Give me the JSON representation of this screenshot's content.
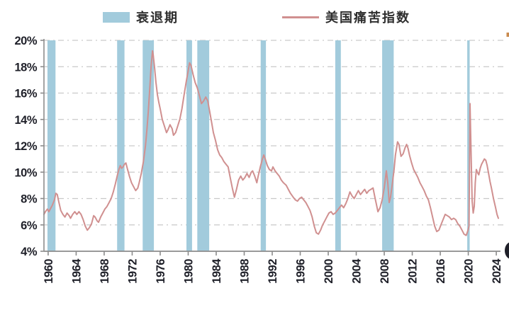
{
  "legend": {
    "recession_label": "衰退期",
    "misery_label": "美国痛苦指数"
  },
  "colors": {
    "recession_band": "#a2cbdc",
    "misery_line": "#d09090",
    "gridline": "#c9c9c9",
    "axis": "#8c8c8c",
    "tick_label": "#1f2029",
    "edge_artifact_dark": "#1f2029",
    "edge_artifact_orange": "#c98a4e"
  },
  "chart_data": {
    "type": "line",
    "title": "",
    "xlabel": "",
    "ylabel": "",
    "legend_position": "top",
    "grid": "horizontal dash-dot",
    "ylim": [
      4,
      20
    ],
    "xlim": [
      1959.4,
      2024.6
    ],
    "y_ticks": [
      "20%",
      "18%",
      "16%",
      "14%",
      "12%",
      "10%",
      "8%",
      "6%",
      "4%"
    ],
    "x_ticks": [
      "1960",
      "1964",
      "1968",
      "1972",
      "1976",
      "1980",
      "1984",
      "1988",
      "1992",
      "1996",
      "2000",
      "2004",
      "2008",
      "2012",
      "2016",
      "2020",
      "2024"
    ],
    "recession_bands": [
      [
        1959.9,
        1961.05
      ],
      [
        1969.85,
        1970.9
      ],
      [
        1973.5,
        1975.1
      ],
      [
        1979.75,
        1980.55
      ],
      [
        1981.3,
        1983.0
      ],
      [
        1990.35,
        1991.1
      ],
      [
        2001.0,
        2001.8
      ],
      [
        2007.7,
        2009.35
      ],
      [
        2019.85,
        2020.2
      ]
    ],
    "series": [
      {
        "name": "美国痛苦指数",
        "points": [
          [
            1959.4,
            6.8
          ],
          [
            1959.6,
            7.0
          ],
          [
            1959.9,
            7.2
          ],
          [
            1960.1,
            7.0
          ],
          [
            1960.3,
            7.2
          ],
          [
            1960.6,
            7.5
          ],
          [
            1960.9,
            7.9
          ],
          [
            1961.1,
            8.4
          ],
          [
            1961.3,
            8.3
          ],
          [
            1961.5,
            7.8
          ],
          [
            1961.8,
            7.1
          ],
          [
            1962.1,
            6.8
          ],
          [
            1962.4,
            6.6
          ],
          [
            1962.7,
            6.9
          ],
          [
            1963.0,
            6.7
          ],
          [
            1963.2,
            6.5
          ],
          [
            1963.5,
            6.8
          ],
          [
            1963.8,
            7.0
          ],
          [
            1964.1,
            6.8
          ],
          [
            1964.4,
            7.0
          ],
          [
            1964.7,
            6.8
          ],
          [
            1965.0,
            6.4
          ],
          [
            1965.3,
            5.9
          ],
          [
            1965.6,
            5.6
          ],
          [
            1965.9,
            5.8
          ],
          [
            1966.2,
            6.1
          ],
          [
            1966.5,
            6.7
          ],
          [
            1966.7,
            6.6
          ],
          [
            1967.0,
            6.3
          ],
          [
            1967.2,
            6.2
          ],
          [
            1967.5,
            6.6
          ],
          [
            1967.8,
            6.9
          ],
          [
            1968.1,
            7.2
          ],
          [
            1968.4,
            7.4
          ],
          [
            1968.7,
            7.7
          ],
          [
            1969.0,
            8.0
          ],
          [
            1969.3,
            8.5
          ],
          [
            1969.6,
            9.1
          ],
          [
            1969.9,
            9.8
          ],
          [
            1970.1,
            10.2
          ],
          [
            1970.3,
            10.5
          ],
          [
            1970.5,
            10.3
          ],
          [
            1970.7,
            10.4
          ],
          [
            1970.9,
            10.6
          ],
          [
            1971.1,
            10.7
          ],
          [
            1971.3,
            10.3
          ],
          [
            1971.6,
            9.7
          ],
          [
            1971.9,
            9.2
          ],
          [
            1972.2,
            8.9
          ],
          [
            1972.5,
            8.6
          ],
          [
            1972.8,
            8.8
          ],
          [
            1973.0,
            9.2
          ],
          [
            1973.3,
            9.9
          ],
          [
            1973.6,
            10.8
          ],
          [
            1973.9,
            12.0
          ],
          [
            1974.1,
            13.2
          ],
          [
            1974.3,
            14.6
          ],
          [
            1974.5,
            16.2
          ],
          [
            1974.7,
            18.0
          ],
          [
            1974.9,
            19.2
          ],
          [
            1975.0,
            18.9
          ],
          [
            1975.2,
            17.9
          ],
          [
            1975.4,
            16.8
          ],
          [
            1975.6,
            15.9
          ],
          [
            1975.8,
            15.3
          ],
          [
            1976.0,
            14.8
          ],
          [
            1976.3,
            14.0
          ],
          [
            1976.6,
            13.5
          ],
          [
            1976.9,
            13.0
          ],
          [
            1977.1,
            13.2
          ],
          [
            1977.4,
            13.6
          ],
          [
            1977.7,
            13.3
          ],
          [
            1977.9,
            12.8
          ],
          [
            1978.2,
            13.0
          ],
          [
            1978.5,
            13.5
          ],
          [
            1978.8,
            14.0
          ],
          [
            1979.1,
            14.8
          ],
          [
            1979.4,
            15.8
          ],
          [
            1979.7,
            16.8
          ],
          [
            1980.0,
            17.7
          ],
          [
            1980.2,
            18.3
          ],
          [
            1980.4,
            18.1
          ],
          [
            1980.7,
            17.4
          ],
          [
            1981.0,
            16.8
          ],
          [
            1981.3,
            16.4
          ],
          [
            1981.6,
            15.8
          ],
          [
            1981.9,
            15.2
          ],
          [
            1982.2,
            15.4
          ],
          [
            1982.5,
            15.7
          ],
          [
            1982.8,
            15.4
          ],
          [
            1983.0,
            14.8
          ],
          [
            1983.3,
            13.9
          ],
          [
            1983.6,
            13.0
          ],
          [
            1983.9,
            12.4
          ],
          [
            1984.2,
            11.7
          ],
          [
            1984.5,
            11.3
          ],
          [
            1984.8,
            11.1
          ],
          [
            1985.1,
            10.8
          ],
          [
            1985.4,
            10.6
          ],
          [
            1985.7,
            10.4
          ],
          [
            1986.0,
            9.6
          ],
          [
            1986.3,
            8.8
          ],
          [
            1986.6,
            8.1
          ],
          [
            1986.9,
            8.7
          ],
          [
            1987.2,
            9.4
          ],
          [
            1987.5,
            9.7
          ],
          [
            1987.8,
            9.4
          ],
          [
            1988.1,
            9.6
          ],
          [
            1988.4,
            9.9
          ],
          [
            1988.7,
            9.6
          ],
          [
            1989.0,
            10.0
          ],
          [
            1989.2,
            10.1
          ],
          [
            1989.5,
            9.7
          ],
          [
            1989.8,
            9.2
          ],
          [
            1990.0,
            9.7
          ],
          [
            1990.3,
            10.4
          ],
          [
            1990.6,
            11.0
          ],
          [
            1990.8,
            11.3
          ],
          [
            1991.0,
            11.0
          ],
          [
            1991.3,
            10.5
          ],
          [
            1991.6,
            10.2
          ],
          [
            1991.9,
            10.1
          ],
          [
            1992.1,
            10.4
          ],
          [
            1992.4,
            10.1
          ],
          [
            1992.7,
            9.9
          ],
          [
            1993.0,
            9.7
          ],
          [
            1993.3,
            9.4
          ],
          [
            1993.6,
            9.2
          ],
          [
            1994.0,
            9.0
          ],
          [
            1994.3,
            8.7
          ],
          [
            1994.6,
            8.4
          ],
          [
            1995.0,
            8.1
          ],
          [
            1995.3,
            7.9
          ],
          [
            1995.6,
            7.8
          ],
          [
            1995.9,
            8.0
          ],
          [
            1996.2,
            8.1
          ],
          [
            1996.5,
            7.9
          ],
          [
            1996.8,
            7.7
          ],
          [
            1997.1,
            7.4
          ],
          [
            1997.4,
            7.1
          ],
          [
            1997.7,
            6.6
          ],
          [
            1998.0,
            5.9
          ],
          [
            1998.3,
            5.4
          ],
          [
            1998.6,
            5.3
          ],
          [
            1998.9,
            5.6
          ],
          [
            1999.2,
            6.0
          ],
          [
            1999.5,
            6.3
          ],
          [
            1999.8,
            6.6
          ],
          [
            2000.1,
            6.9
          ],
          [
            2000.4,
            7.0
          ],
          [
            2000.7,
            6.8
          ],
          [
            2001.0,
            6.9
          ],
          [
            2001.3,
            7.1
          ],
          [
            2001.6,
            7.3
          ],
          [
            2001.9,
            7.5
          ],
          [
            2002.2,
            7.3
          ],
          [
            2002.5,
            7.6
          ],
          [
            2002.8,
            8.0
          ],
          [
            2003.1,
            8.5
          ],
          [
            2003.4,
            8.2
          ],
          [
            2003.7,
            8.0
          ],
          [
            2004.0,
            8.3
          ],
          [
            2004.3,
            8.6
          ],
          [
            2004.6,
            8.3
          ],
          [
            2004.9,
            8.5
          ],
          [
            2005.2,
            8.7
          ],
          [
            2005.5,
            8.4
          ],
          [
            2005.8,
            8.6
          ],
          [
            2006.1,
            8.7
          ],
          [
            2006.4,
            8.8
          ],
          [
            2006.7,
            8.0
          ],
          [
            2006.9,
            7.5
          ],
          [
            2007.1,
            7.0
          ],
          [
            2007.4,
            7.3
          ],
          [
            2007.7,
            7.9
          ],
          [
            2008.0,
            8.8
          ],
          [
            2008.3,
            10.1
          ],
          [
            2008.5,
            9.2
          ],
          [
            2008.7,
            7.7
          ],
          [
            2008.9,
            8.1
          ],
          [
            2009.1,
            8.9
          ],
          [
            2009.4,
            10.2
          ],
          [
            2009.6,
            11.3
          ],
          [
            2009.9,
            12.3
          ],
          [
            2010.1,
            12.1
          ],
          [
            2010.4,
            11.2
          ],
          [
            2010.7,
            11.4
          ],
          [
            2011.0,
            11.9
          ],
          [
            2011.2,
            12.1
          ],
          [
            2011.4,
            11.8
          ],
          [
            2011.6,
            11.3
          ],
          [
            2011.9,
            10.7
          ],
          [
            2012.2,
            10.2
          ],
          [
            2012.5,
            9.9
          ],
          [
            2012.8,
            9.6
          ],
          [
            2013.1,
            9.2
          ],
          [
            2013.4,
            8.9
          ],
          [
            2013.7,
            8.6
          ],
          [
            2014.0,
            8.2
          ],
          [
            2014.3,
            7.9
          ],
          [
            2014.6,
            7.3
          ],
          [
            2014.9,
            6.6
          ],
          [
            2015.2,
            5.9
          ],
          [
            2015.5,
            5.5
          ],
          [
            2015.8,
            5.6
          ],
          [
            2016.1,
            6.0
          ],
          [
            2016.4,
            6.4
          ],
          [
            2016.7,
            6.8
          ],
          [
            2017.0,
            6.7
          ],
          [
            2017.3,
            6.6
          ],
          [
            2017.6,
            6.4
          ],
          [
            2017.9,
            6.5
          ],
          [
            2018.2,
            6.4
          ],
          [
            2018.5,
            6.1
          ],
          [
            2018.8,
            5.9
          ],
          [
            2019.1,
            5.6
          ],
          [
            2019.4,
            5.3
          ],
          [
            2019.7,
            5.2
          ],
          [
            2019.9,
            5.5
          ],
          [
            2020.1,
            5.9
          ],
          [
            2020.25,
            15.2
          ],
          [
            2020.4,
            11.5
          ],
          [
            2020.55,
            7.8
          ],
          [
            2020.7,
            6.9
          ],
          [
            2020.85,
            7.4
          ],
          [
            2021.0,
            9.2
          ],
          [
            2021.15,
            10.2
          ],
          [
            2021.3,
            10.0
          ],
          [
            2021.5,
            9.8
          ],
          [
            2021.7,
            10.3
          ],
          [
            2021.9,
            10.6
          ],
          [
            2022.1,
            10.8
          ],
          [
            2022.3,
            11.0
          ],
          [
            2022.5,
            10.9
          ],
          [
            2022.7,
            10.5
          ],
          [
            2022.9,
            9.9
          ],
          [
            2023.1,
            9.3
          ],
          [
            2023.3,
            8.8
          ],
          [
            2023.6,
            8.0
          ],
          [
            2023.9,
            7.3
          ],
          [
            2024.1,
            6.8
          ],
          [
            2024.3,
            6.5
          ]
        ]
      }
    ]
  }
}
